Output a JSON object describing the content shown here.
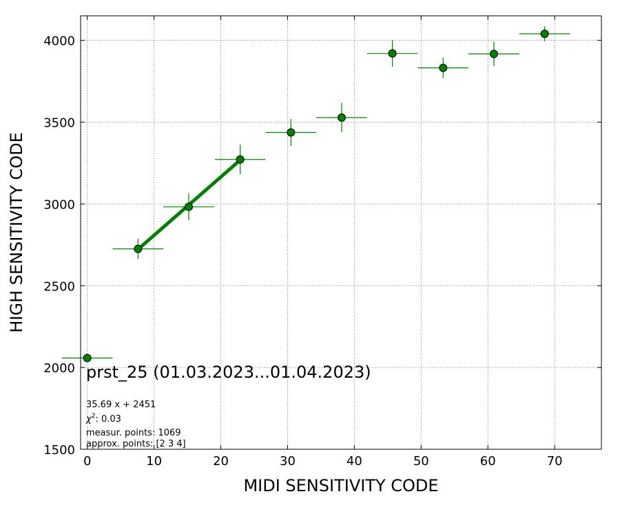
{
  "chart_data": {
    "type": "scatter",
    "xlabel": "MIDI SENSITIVITY CODE",
    "ylabel": "HIGH SENSITIVITY CODE",
    "xlim": [
      -1,
      77
    ],
    "ylim": [
      1500,
      4150
    ],
    "xticks": [
      0,
      10,
      20,
      30,
      40,
      50,
      60,
      70
    ],
    "yticks": [
      1500,
      2000,
      2500,
      3000,
      3500,
      4000
    ],
    "grid": true,
    "marker_color": "#008000",
    "fit_color": "#008000",
    "points": [
      {
        "x": 0.0,
        "y": 2058,
        "xerr": 3.8,
        "yerr": 0
      },
      {
        "x": 7.6,
        "y": 2725,
        "xerr": 3.8,
        "yerr": 62
      },
      {
        "x": 15.2,
        "y": 2982,
        "xerr": 3.8,
        "yerr": 82
      },
      {
        "x": 22.9,
        "y": 3272,
        "xerr": 3.8,
        "yerr": 90
      },
      {
        "x": 30.5,
        "y": 3437,
        "xerr": 3.8,
        "yerr": 82
      },
      {
        "x": 38.1,
        "y": 3528,
        "xerr": 3.8,
        "yerr": 90
      },
      {
        "x": 45.7,
        "y": 3920,
        "xerr": 3.8,
        "yerr": 82
      },
      {
        "x": 53.3,
        "y": 3832,
        "xerr": 3.8,
        "yerr": 62
      },
      {
        "x": 60.9,
        "y": 3917,
        "xerr": 3.8,
        "yerr": 75
      },
      {
        "x": 68.5,
        "y": 4040,
        "xerr": 3.8,
        "yerr": 45
      }
    ],
    "fit": {
      "slope": 35.69,
      "intercept": 2451,
      "x_range": [
        7.6,
        22.9
      ]
    },
    "annotations": {
      "title": "prst_25 (01.03.2023...01.04.2023)",
      "equation": "35.69 x + 2451",
      "chi2_label": "χ",
      "chi2_sup": "2",
      "chi2_value": ": 0.03",
      "measur_points": "measur. points: 1069",
      "approx_points": "approx. points: [2 3 4]"
    }
  }
}
